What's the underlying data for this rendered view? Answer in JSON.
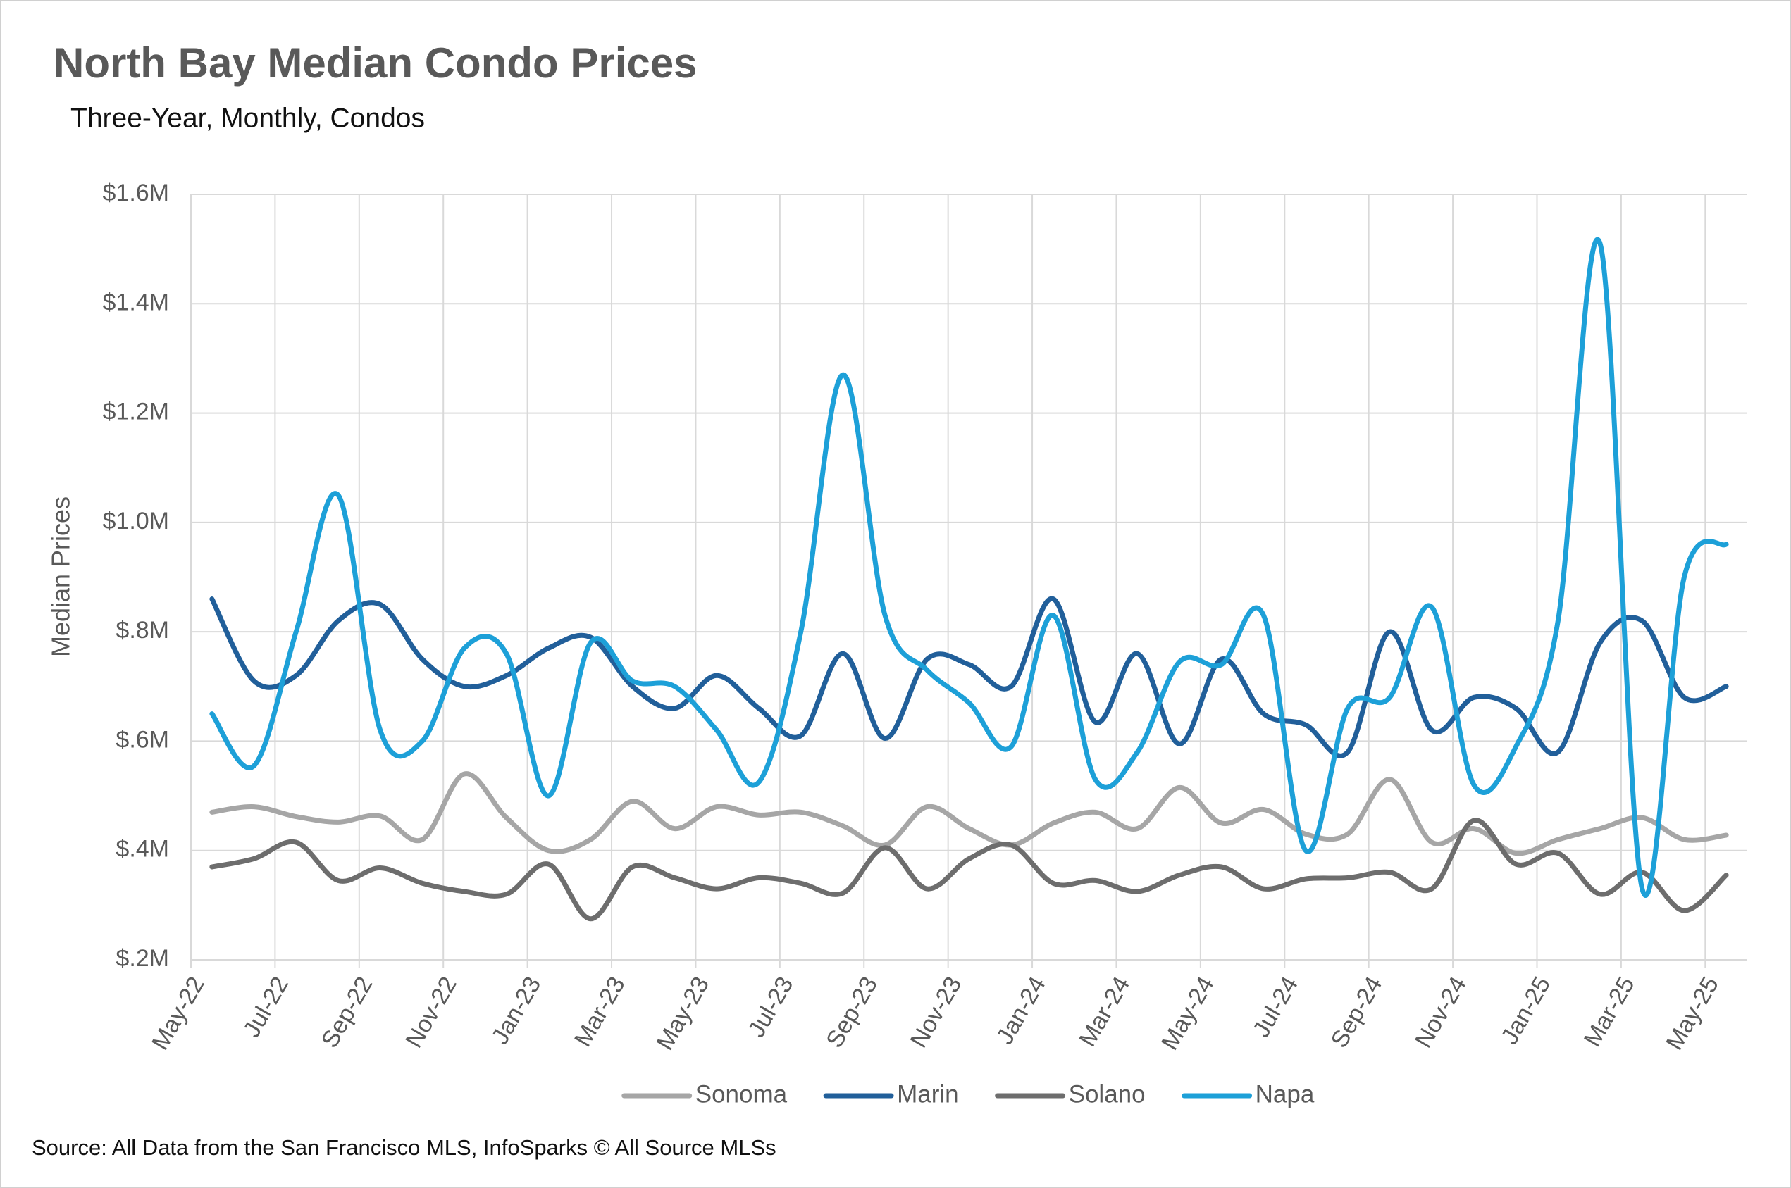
{
  "chart_data": {
    "type": "line",
    "title": "North Bay Median Condo Prices",
    "subtitle": "Three-Year, Monthly, Condos",
    "y_label": "Median Prices",
    "source": "Source: All Data from the San Francisco MLS, InfoSparks © All Source MLSs",
    "categories": [
      "May-22",
      null,
      "Jul-22",
      null,
      "Sep-22",
      null,
      "Nov-22",
      null,
      "Jan-23",
      null,
      "Mar-23",
      null,
      "May-23",
      null,
      "Jul-23",
      null,
      "Sep-23",
      null,
      "Nov-23",
      null,
      "Jan-24",
      null,
      "Mar-24",
      null,
      "May-24",
      null,
      "Jul-24",
      null,
      "Sep-24",
      null,
      "Nov-24",
      null,
      "Jan-25",
      null,
      "Mar-25",
      null,
      "May-25"
    ],
    "series": [
      {
        "name": "Sonoma",
        "color": "#a6a6a6",
        "values": [
          470000,
          480000,
          462000,
          452000,
          463000,
          420000,
          540000,
          460000,
          400000,
          420000,
          490000,
          440000,
          480000,
          465000,
          470000,
          445000,
          410000,
          480000,
          440000,
          410000,
          450000,
          470000,
          440000,
          515000,
          450000,
          475000,
          430000,
          430000,
          530000,
          415000,
          440000,
          395000,
          420000,
          440000,
          460000,
          420000,
          428000
        ]
      },
      {
        "name": "Marin",
        "color": "#215f9a",
        "values": [
          860000,
          710000,
          720000,
          820000,
          850000,
          750000,
          700000,
          720000,
          770000,
          790000,
          700000,
          660000,
          720000,
          660000,
          610000,
          760000,
          605000,
          750000,
          740000,
          700000,
          860000,
          635000,
          760000,
          595000,
          750000,
          650000,
          630000,
          580000,
          800000,
          620000,
          680000,
          660000,
          580000,
          780000,
          820000,
          680000,
          700000
        ]
      },
      {
        "name": "Solano",
        "color": "#6d6d6d",
        "values": [
          370000,
          385000,
          415000,
          345000,
          368000,
          340000,
          325000,
          320000,
          375000,
          275000,
          370000,
          350000,
          330000,
          350000,
          340000,
          322000,
          405000,
          330000,
          385000,
          410000,
          340000,
          345000,
          325000,
          355000,
          370000,
          330000,
          348000,
          350000,
          360000,
          330000,
          455000,
          375000,
          395000,
          320000,
          360000,
          290000,
          355000
        ]
      },
      {
        "name": "Napa",
        "color": "#1da0d8",
        "values": [
          650000,
          555000,
          800000,
          1050000,
          620000,
          600000,
          770000,
          760000,
          500000,
          780000,
          710000,
          700000,
          620000,
          525000,
          800000,
          1270000,
          830000,
          730000,
          670000,
          590000,
          830000,
          530000,
          580000,
          745000,
          740000,
          830000,
          400000,
          660000,
          680000,
          845000,
          520000,
          590000,
          820000,
          1510000,
          330000,
          900000,
          960000
        ]
      }
    ],
    "ylim": [
      200000,
      1600000
    ],
    "yticks": [
      {
        "value": 200000,
        "label": "$.2M"
      },
      {
        "value": 400000,
        "label": "$.4M"
      },
      {
        "value": 600000,
        "label": "$.6M"
      },
      {
        "value": 800000,
        "label": "$.8M"
      },
      {
        "value": 1000000,
        "label": "$1.0M"
      },
      {
        "value": 1200000,
        "label": "$1.2M"
      },
      {
        "value": 1400000,
        "label": "$1.4M"
      },
      {
        "value": 1600000,
        "label": "$1.6M"
      }
    ],
    "grid": true,
    "smooth": true,
    "legend": "bottom"
  }
}
